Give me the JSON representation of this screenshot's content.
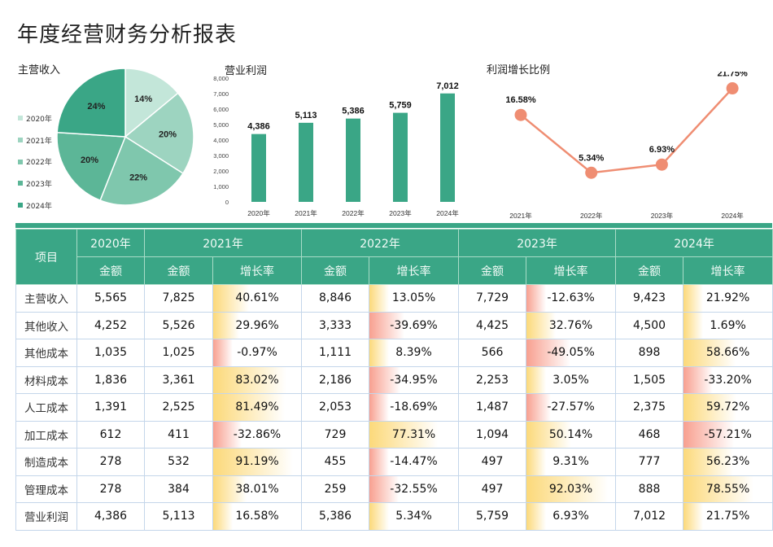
{
  "page_title": "年度经营财务分析报表",
  "colors": {
    "accent": "#3aa686",
    "positive_bar": "#fcd97a",
    "negative_bar": "#f8a090",
    "line": "#ef8d72",
    "pie": [
      "#c3e6d9",
      "#9dd4c0",
      "#7fc7ad",
      "#5cb697",
      "#3aa686"
    ]
  },
  "chart_data": [
    {
      "type": "pie",
      "title": "主营收入",
      "categories": [
        "2020年",
        "2021年",
        "2022年",
        "2023年",
        "2024年"
      ],
      "values": [
        14,
        20,
        22,
        20,
        24
      ],
      "labels": [
        "14%",
        "20%",
        "22%",
        "20%",
        "24%"
      ],
      "legend": "left"
    },
    {
      "type": "bar",
      "title": "营业利润",
      "categories": [
        "2020年",
        "2021年",
        "2022年",
        "2023年",
        "2024年"
      ],
      "values": [
        4386,
        5113,
        5386,
        5759,
        7012
      ],
      "labels": [
        "4,386",
        "5,113",
        "5,386",
        "5,759",
        "7,012"
      ],
      "ylim": [
        0,
        8000
      ],
      "yticks": [
        "0",
        "1,000",
        "2,000",
        "3,000",
        "4,000",
        "5,000",
        "6,000",
        "7,000",
        "8,000"
      ]
    },
    {
      "type": "line",
      "title": "利润增长比例",
      "categories": [
        "2021年",
        "2022年",
        "2023年",
        "2024年"
      ],
      "values": [
        16.58,
        5.34,
        6.93,
        21.75
      ],
      "labels": [
        "16.58%",
        "5.34%",
        "6.93%",
        "21.75%"
      ]
    }
  ],
  "table": {
    "item_header": "项目",
    "years": [
      "2020年",
      "2021年",
      "2022年",
      "2023年",
      "2024年"
    ],
    "amount_label": "金额",
    "rate_label": "增长率",
    "rows": [
      {
        "name": "主营收入",
        "amounts": [
          "5,565",
          "7,825",
          "8,846",
          "7,729",
          "9,423"
        ],
        "rates": [
          "40.61%",
          "13.05%",
          "-12.63%",
          "21.92%"
        ],
        "rate_values": [
          40.61,
          13.05,
          -12.63,
          21.92
        ]
      },
      {
        "name": "其他收入",
        "amounts": [
          "4,252",
          "5,526",
          "3,333",
          "4,425",
          "4,500"
        ],
        "rates": [
          "29.96%",
          "-39.69%",
          "32.76%",
          "1.69%"
        ],
        "rate_values": [
          29.96,
          -39.69,
          32.76,
          1.69
        ]
      },
      {
        "name": "其他成本",
        "amounts": [
          "1,035",
          "1,025",
          "1,111",
          "566",
          "898"
        ],
        "rates": [
          "-0.97%",
          "8.39%",
          "-49.05%",
          "58.66%"
        ],
        "rate_values": [
          -0.97,
          8.39,
          -49.05,
          58.66
        ]
      },
      {
        "name": "材料成本",
        "amounts": [
          "1,836",
          "3,361",
          "2,186",
          "2,253",
          "1,505"
        ],
        "rates": [
          "83.02%",
          "-34.95%",
          "3.05%",
          "-33.20%"
        ],
        "rate_values": [
          83.02,
          -34.95,
          3.05,
          -33.2
        ]
      },
      {
        "name": "人工成本",
        "amounts": [
          "1,391",
          "2,525",
          "2,053",
          "1,487",
          "2,375"
        ],
        "rates": [
          "81.49%",
          "-18.69%",
          "-27.57%",
          "59.72%"
        ],
        "rate_values": [
          81.49,
          -18.69,
          -27.57,
          59.72
        ]
      },
      {
        "name": "加工成本",
        "amounts": [
          "612",
          "411",
          "729",
          "1,094",
          "468"
        ],
        "rates": [
          "-32.86%",
          "77.31%",
          "50.14%",
          "-57.21%"
        ],
        "rate_values": [
          -32.86,
          77.31,
          50.14,
          -57.21
        ]
      },
      {
        "name": "制造成本",
        "amounts": [
          "278",
          "532",
          "455",
          "497",
          "777"
        ],
        "rates": [
          "91.19%",
          "-14.47%",
          "9.31%",
          "56.23%"
        ],
        "rate_values": [
          91.19,
          -14.47,
          9.31,
          56.23
        ]
      },
      {
        "name": "管理成本",
        "amounts": [
          "278",
          "384",
          "259",
          "497",
          "888"
        ],
        "rates": [
          "38.01%",
          "-32.55%",
          "92.03%",
          "78.55%"
        ],
        "rate_values": [
          38.01,
          -32.55,
          92.03,
          78.55
        ]
      },
      {
        "name": "营业利润",
        "amounts": [
          "4,386",
          "5,113",
          "5,386",
          "5,759",
          "7,012"
        ],
        "rates": [
          "16.58%",
          "5.34%",
          "6.93%",
          "21.75%"
        ],
        "rate_values": [
          16.58,
          5.34,
          6.93,
          21.75
        ]
      }
    ]
  }
}
